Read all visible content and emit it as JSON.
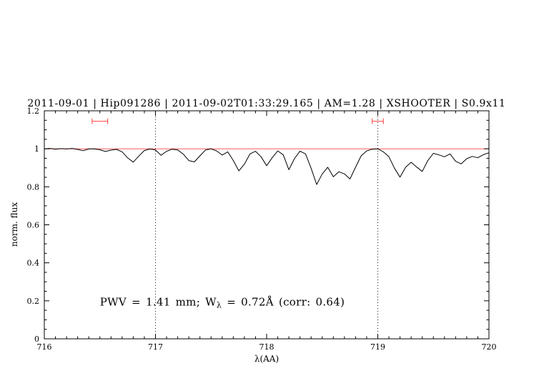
{
  "chart_data": {
    "type": "line",
    "title": "2011-09-01 | Hip091286 | 2011-09-02T01:33:29.165 | AM=1.28 | XSHOOTER | S0.9x11",
    "xlabel": "λ(AA)",
    "ylabel": "norm. flux",
    "xlim": [
      716,
      720
    ],
    "ylim": [
      0,
      1.2
    ],
    "xticks": [
      "716",
      "717",
      "718",
      "719",
      "720"
    ],
    "yticks": [
      "0",
      "0.2",
      "0.4",
      "0.6",
      "0.8",
      "1",
      "1.2"
    ],
    "x_major_step": 1,
    "x_minor_step": 0.1,
    "y_major_step": 0.2,
    "y_minor_step": 0.05,
    "grid": {
      "vlines": [
        717,
        719
      ],
      "style": "dotted",
      "color": "#000000"
    },
    "colors": {
      "accent_blue": "#0000e0",
      "continuum_red": "#ff4040",
      "marker_red": "#ff4040",
      "spectrum_black": "#000000"
    },
    "annotation": {
      "pre": "PWV = 1.41 mm; W",
      "sub": "λ",
      "post": " = 0.72Å (corr: 0.64)",
      "x": 716.5,
      "y": 0.175
    },
    "markers": [
      {
        "name": "band-marker-left",
        "x": 716.5,
        "halfwidth": 0.07,
        "y": 1.145
      },
      {
        "name": "band-marker-right",
        "x": 719.0,
        "halfwidth": 0.05,
        "y": 1.145
      }
    ],
    "series": [
      {
        "name": "continuum",
        "color": "#ff4040",
        "width": 0.9,
        "points": [
          [
            716.0,
            1.0
          ],
          [
            720.0,
            1.0
          ]
        ]
      },
      {
        "name": "spectrum",
        "color": "#000000",
        "width": 1,
        "points": [
          [
            716.0,
            1.0
          ],
          [
            716.05,
            1.002
          ],
          [
            716.1,
            0.998
          ],
          [
            716.15,
            1.001
          ],
          [
            716.2,
            0.999
          ],
          [
            716.25,
            1.002
          ],
          [
            716.3,
            0.997
          ],
          [
            716.35,
            0.99
          ],
          [
            716.4,
            0.999
          ],
          [
            716.45,
            1.0
          ],
          [
            716.5,
            0.995
          ],
          [
            716.55,
            0.986
          ],
          [
            716.6,
            0.993
          ],
          [
            716.65,
            0.997
          ],
          [
            716.7,
            0.984
          ],
          [
            716.75,
            0.952
          ],
          [
            716.8,
            0.93
          ],
          [
            716.85,
            0.962
          ],
          [
            716.9,
            0.991
          ],
          [
            716.95,
            0.999
          ],
          [
            717.0,
            0.994
          ],
          [
            717.05,
            0.966
          ],
          [
            717.1,
            0.987
          ],
          [
            717.15,
            0.998
          ],
          [
            717.2,
            0.994
          ],
          [
            717.25,
            0.972
          ],
          [
            717.3,
            0.938
          ],
          [
            717.35,
            0.931
          ],
          [
            717.4,
            0.963
          ],
          [
            717.45,
            0.994
          ],
          [
            717.5,
            1.0
          ],
          [
            717.55,
            0.989
          ],
          [
            717.6,
            0.967
          ],
          [
            717.65,
            0.984
          ],
          [
            717.7,
            0.938
          ],
          [
            717.75,
            0.884
          ],
          [
            717.8,
            0.919
          ],
          [
            717.85,
            0.973
          ],
          [
            717.9,
            0.987
          ],
          [
            717.95,
            0.958
          ],
          [
            718.0,
            0.911
          ],
          [
            718.05,
            0.953
          ],
          [
            718.1,
            0.989
          ],
          [
            718.15,
            0.968
          ],
          [
            718.2,
            0.89
          ],
          [
            718.25,
            0.948
          ],
          [
            718.3,
            0.988
          ],
          [
            718.35,
            0.973
          ],
          [
            718.4,
            0.898
          ],
          [
            718.45,
            0.812
          ],
          [
            718.5,
            0.868
          ],
          [
            718.55,
            0.903
          ],
          [
            718.6,
            0.853
          ],
          [
            718.65,
            0.879
          ],
          [
            718.7,
            0.868
          ],
          [
            718.75,
            0.841
          ],
          [
            718.8,
            0.903
          ],
          [
            718.85,
            0.963
          ],
          [
            718.9,
            0.989
          ],
          [
            718.95,
            0.998
          ],
          [
            719.0,
            1.0
          ],
          [
            719.05,
            0.984
          ],
          [
            719.1,
            0.958
          ],
          [
            719.15,
            0.898
          ],
          [
            719.2,
            0.851
          ],
          [
            719.25,
            0.903
          ],
          [
            719.3,
            0.929
          ],
          [
            719.35,
            0.904
          ],
          [
            719.4,
            0.881
          ],
          [
            719.45,
            0.938
          ],
          [
            719.5,
            0.976
          ],
          [
            719.55,
            0.968
          ],
          [
            719.6,
            0.958
          ],
          [
            719.65,
            0.973
          ],
          [
            719.7,
            0.934
          ],
          [
            719.75,
            0.921
          ],
          [
            719.8,
            0.948
          ],
          [
            719.85,
            0.96
          ],
          [
            719.9,
            0.953
          ],
          [
            719.95,
            0.969
          ],
          [
            720.0,
            0.979
          ]
        ]
      }
    ]
  }
}
